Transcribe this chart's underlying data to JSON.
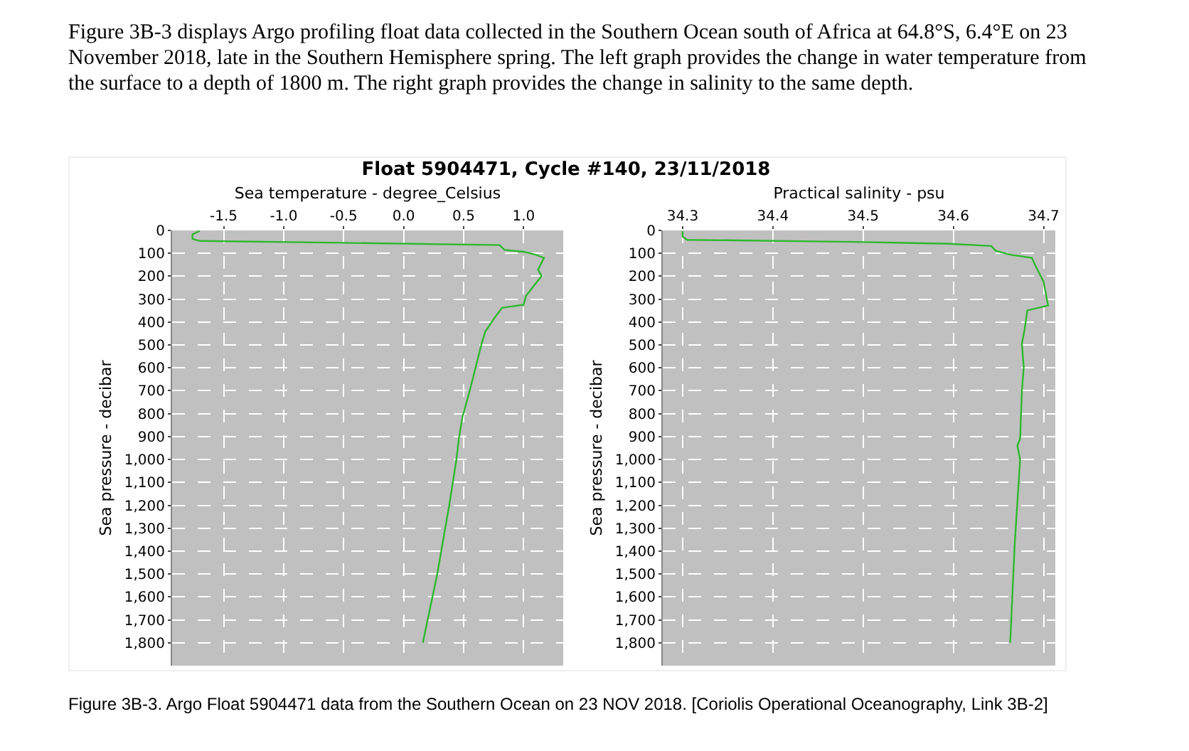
{
  "chart_data": [
    {
      "type": "line",
      "title": "Float 5904471, Cycle #140, 23/11/2018",
      "xlabel": "Sea temperature - degree_Celsius",
      "ylabel": "Sea pressure - decibar",
      "annotations": [
        "Figure 3B-3 displays Argo profiling float data collected in the Southern Ocean south of Africa at 64.8°S, 6.4°E on 23 November 2018, late in the Southern Hemisphere spring. The left graph provides the change in water temperature from the surface to a depth of 1800 m. The right graph provides the change in salinity to the same depth.",
        "Figure 3B-3. Argo Float 5904471 data from the Southern Ocean on 23 NOV 2018. [Coriolis Operational Oceanography, Link 3B-2]"
      ],
      "series": [
        {
          "color": "#2db82d",
          "x": [
            -1.7,
            -1.76,
            -1.76,
            -1.7,
            -0.52,
            0.8,
            0.84,
            1.0,
            1.1,
            1.17,
            1.14,
            1.12,
            1.15,
            1.08,
            1.02,
            1.0,
            0.82,
            0.76,
            0.68,
            0.65,
            0.6,
            0.55,
            0.49,
            0.46,
            0.44,
            0.38,
            0.28,
            0.16
          ],
          "values": [
            2,
            17,
            37,
            46,
            54,
            64,
            85,
            93,
            106,
            120,
            151,
            172,
            199,
            245,
            286,
            324,
            338,
            380,
            442,
            494,
            598,
            701,
            815,
            909,
            1000,
            1200,
            1500,
            1800
          ]
        }
      ],
      "xlim": [
        -1.93,
        1.33
      ],
      "xticks": [
        -1.5,
        {
          "value": -1,
          "label": "-1.0"
        },
        -0.5,
        {
          "value": 0,
          "label": "0.0"
        },
        0.5,
        {
          "value": 1,
          "label": "1.0"
        }
      ],
      "ylim": [
        1900,
        0
      ],
      "yticks": [
        0,
        100,
        200,
        300,
        400,
        500,
        600,
        700,
        800,
        900,
        {
          "value": 1000,
          "label": "1,000"
        },
        {
          "value": 1100,
          "label": "1,100"
        },
        {
          "value": 1200,
          "label": "1,200"
        },
        {
          "value": 1300,
          "label": "1,300"
        },
        {
          "value": 1400,
          "label": "1,400"
        },
        {
          "value": 1500,
          "label": "1,500"
        },
        {
          "value": 1600,
          "label": "1,600"
        },
        {
          "value": 1700,
          "label": "1,700"
        },
        {
          "value": 1800,
          "label": "1,800"
        }
      ],
      "grid": true
    },
    {
      "type": "line",
      "xlabel": "Practical salinity - psu",
      "ylabel": "Sea pressure - decibar",
      "series": [
        {
          "color": "#2db82d",
          "x": [
            34.3,
            34.3,
            34.305,
            34.49,
            34.595,
            34.642,
            34.647,
            34.663,
            34.687,
            34.692,
            34.7,
            34.703,
            34.705,
            34.682,
            34.679,
            34.676,
            34.678,
            34.676,
            34.674,
            34.671,
            34.674,
            34.668,
            34.663
          ],
          "values": [
            2,
            27,
            41,
            50,
            58,
            68,
            89,
            106,
            120,
            162,
            224,
            286,
            328,
            349,
            432,
            494,
            598,
            701,
            909,
            940,
            1000,
            1370,
            1800
          ]
        }
      ],
      "xlim": [
        34.278,
        34.713
      ],
      "xticks": [
        34.3,
        34.4,
        34.5,
        34.6,
        34.7
      ],
      "ylim": [
        1900,
        0
      ],
      "yticks": [
        0,
        100,
        200,
        300,
        400,
        500,
        600,
        700,
        800,
        900,
        {
          "value": 1000,
          "label": "1,000"
        },
        {
          "value": 1100,
          "label": "1,100"
        },
        {
          "value": 1200,
          "label": "1,200"
        },
        {
          "value": 1300,
          "label": "1,300"
        },
        {
          "value": 1400,
          "label": "1,400"
        },
        {
          "value": 1500,
          "label": "1,500"
        },
        {
          "value": 1600,
          "label": "1,600"
        },
        {
          "value": 1700,
          "label": "1,700"
        },
        {
          "value": 1800,
          "label": "1,800"
        }
      ],
      "grid": true
    }
  ]
}
